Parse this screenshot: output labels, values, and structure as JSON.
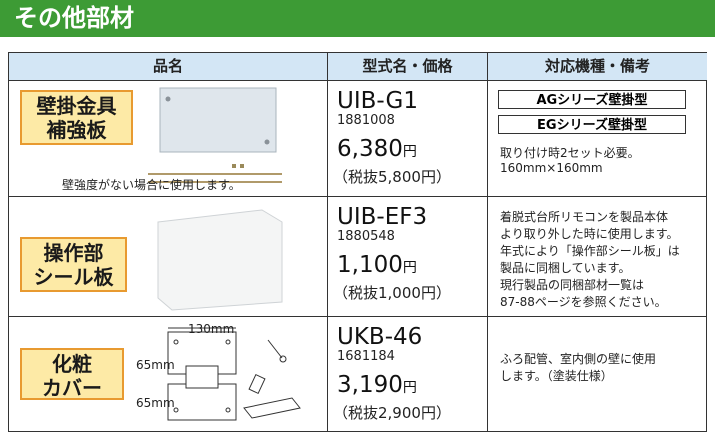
{
  "header": {
    "title": "その他部材"
  },
  "table": {
    "columns": [
      "品名",
      "型式名・価格",
      "対応機種・備考"
    ],
    "rows": [
      {
        "name_lines": [
          "壁掛金具",
          "補強板"
        ],
        "caption": "壁強度がない場合に使用します。",
        "model": "UIB-G1",
        "code": "1881008",
        "price": "6,380",
        "price_unit": "円",
        "tax_note": "（税抜5,800円）",
        "note_boxes": [
          "AGシリーズ壁掛型",
          "EGシリーズ壁掛型"
        ],
        "note_lines": [
          "取り付け時2セット必要。",
          "160mm×160mm"
        ]
      },
      {
        "name_lines": [
          "操作部",
          "シール板"
        ],
        "model": "UIB-EF3",
        "code": "1880548",
        "price": "1,100",
        "price_unit": "円",
        "tax_note": "（税抜1,000円）",
        "note_lines": [
          "着脱式台所リモコンを製品本体",
          "より取り外した時に使用します。",
          "年式により「操作部シール板」は",
          "製品に同梱しています。",
          "現行製品の同梱部材一覧は",
          "87-88ページを参照ください。"
        ]
      },
      {
        "name_lines": [
          "化粧",
          "カバー"
        ],
        "dimensions": [
          "130mm",
          "65mm",
          "65mm"
        ],
        "model": "UKB-46",
        "code": "1681184",
        "price": "3,190",
        "price_unit": "円",
        "tax_note": "（税抜2,900円）",
        "note_lines": [
          "ふろ配管、室内側の壁に使用",
          "します。（塗装仕様）"
        ]
      }
    ]
  }
}
